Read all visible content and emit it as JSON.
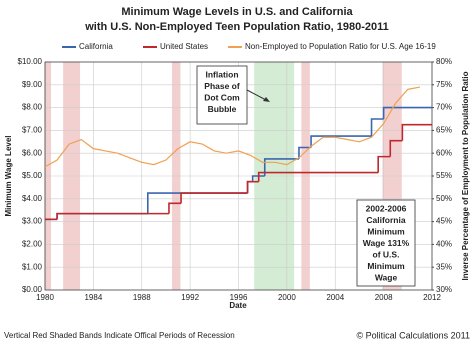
{
  "chart_data": {
    "type": "line",
    "title": [
      "Minimum Wage Levels in U.S. and California",
      "with U.S. Non-Employed Teen Population Ratio, 1980-2011"
    ],
    "xlabel": "Date",
    "ylabel": "Minimum Wage Level",
    "y2label": "Inverse Percentage of Employment to Population Ratio",
    "xlim": [
      1980,
      2012
    ],
    "xticks": [
      1980,
      1984,
      1988,
      1992,
      1996,
      2000,
      2004,
      2008,
      2012
    ],
    "ylim": [
      0,
      10
    ],
    "yticks": [
      {
        "value": 0,
        "label": "$0.00"
      },
      {
        "value": 1,
        "label": "$1.00"
      },
      {
        "value": 2,
        "label": "$2.00"
      },
      {
        "value": 3,
        "label": "$3.00"
      },
      {
        "value": 4,
        "label": "$4.00"
      },
      {
        "value": 5,
        "label": "$5.00"
      },
      {
        "value": 6,
        "label": "$6.00"
      },
      {
        "value": 7,
        "label": "$7.00"
      },
      {
        "value": 8,
        "label": "$8.00"
      },
      {
        "value": 9,
        "label": "$9.00"
      },
      {
        "value": 10,
        "label": "$10.00"
      }
    ],
    "y2lim": [
      30,
      80
    ],
    "y2ticks": [
      {
        "value": 30,
        "label": "30%"
      },
      {
        "value": 35,
        "label": "35%"
      },
      {
        "value": 40,
        "label": "40%"
      },
      {
        "value": 45,
        "label": "45%"
      },
      {
        "value": 50,
        "label": "50%"
      },
      {
        "value": 55,
        "label": "55%"
      },
      {
        "value": 60,
        "label": "60%"
      },
      {
        "value": 65,
        "label": "65%"
      },
      {
        "value": 70,
        "label": "70%"
      },
      {
        "value": 75,
        "label": "75%"
      },
      {
        "value": 80,
        "label": "80%"
      }
    ],
    "grid": true,
    "recessions": [
      [
        1980.0,
        1980.5
      ],
      [
        1981.5,
        1982.9
      ],
      [
        1990.5,
        1991.2
      ],
      [
        2001.2,
        2001.9
      ],
      [
        2007.9,
        2009.5
      ]
    ],
    "recession_color": "#f2d0d0",
    "highlight": [
      1997.3,
      2000.6
    ],
    "highlight_color": "#d4ecd4",
    "series": [
      {
        "name": "California",
        "color": "#3a66b0",
        "step": true,
        "x": [
          1980,
          1981,
          1988.5,
          1996.75,
          1997.17,
          1998.17,
          2001,
          2002,
          2007,
          2008,
          2012
        ],
        "values": [
          3.1,
          3.35,
          4.25,
          4.75,
          5.0,
          5.75,
          6.25,
          6.75,
          7.5,
          8.0,
          8.0
        ]
      },
      {
        "name": "United States",
        "color": "#c0282d",
        "step": true,
        "x": [
          1980,
          1981,
          1990.25,
          1991.25,
          1996.75,
          1997.67,
          2007.55,
          2008.55,
          2009.55,
          2012
        ],
        "values": [
          3.1,
          3.35,
          3.8,
          4.25,
          4.75,
          5.15,
          5.85,
          6.55,
          7.25,
          7.25
        ]
      },
      {
        "name": "Non-Employed to Population Ratio for U.S. Age 16-19",
        "color": "#f0a050",
        "axis": "y2",
        "step": false,
        "x": [
          1980,
          1981,
          1982,
          1983,
          1984,
          1985,
          1986,
          1987,
          1988,
          1989,
          1990,
          1991,
          1992,
          1993,
          1994,
          1995,
          1996,
          1997,
          1998,
          1999,
          2000,
          2001,
          2002,
          2003,
          2004,
          2005,
          2006,
          2007,
          2008,
          2009,
          2010,
          2011
        ],
        "values": [
          57,
          58.5,
          62,
          63,
          61,
          60.5,
          60,
          59,
          58,
          57.5,
          58.5,
          61,
          62.5,
          62,
          60.5,
          60,
          60.5,
          59.5,
          58,
          58,
          57.5,
          59,
          61.5,
          63.5,
          63.5,
          63,
          62.5,
          63.5,
          66.5,
          71,
          74,
          74.5
        ]
      }
    ],
    "annotations": [
      {
        "lines": [
          "Inflation",
          "Phase of",
          "Dot Com",
          "Bubble"
        ]
      },
      {
        "lines": [
          "2002-2006",
          "California",
          "Minimum",
          "Wage 131%",
          "of U.S.",
          "Minimum",
          "Wage"
        ]
      }
    ],
    "footer_left": "Vertical Red Shaded Bands Indicate Offical Periods of Recession",
    "footer_right": "© Political Calculations 2011"
  }
}
